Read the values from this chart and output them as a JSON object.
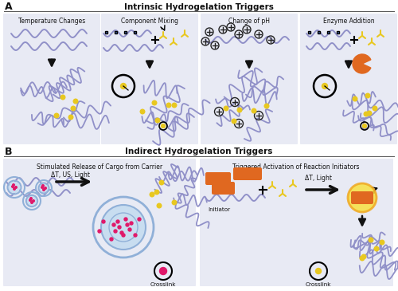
{
  "title_A": "Intrinsic Hydrogelation Triggers",
  "title_B": "Indirect Hydrogelation Triggers",
  "label_A": "A",
  "label_B": "B",
  "section_A_titles": [
    "Temperature Changes",
    "Component Mixing",
    "Change of pH",
    "Enzyme Addition"
  ],
  "section_B_titles": [
    "Stimulated Release of Cargo from Carrier",
    "Triggered Activation of Reaction Initiators"
  ],
  "bg_color": "#ffffff",
  "panel_bg": "#e8eaf4",
  "polymer_color": "#9090c8",
  "crosslink_color": "#e8c820",
  "arrow_color": "#111111",
  "text_color": "#111111",
  "orange_color": "#e06820",
  "pink_color": "#e0186a",
  "blue_carrier_color": "#90b0d8",
  "carrier_fill": "#c8ddf0",
  "section_B_label1": "ΔT, US, Light",
  "section_B_label2": "ΔT, Light",
  "crosslink_label": "Crosslink",
  "initiator_label": "Initiator",
  "blue_sq_color": "#4466aa",
  "line_color": "#333333"
}
